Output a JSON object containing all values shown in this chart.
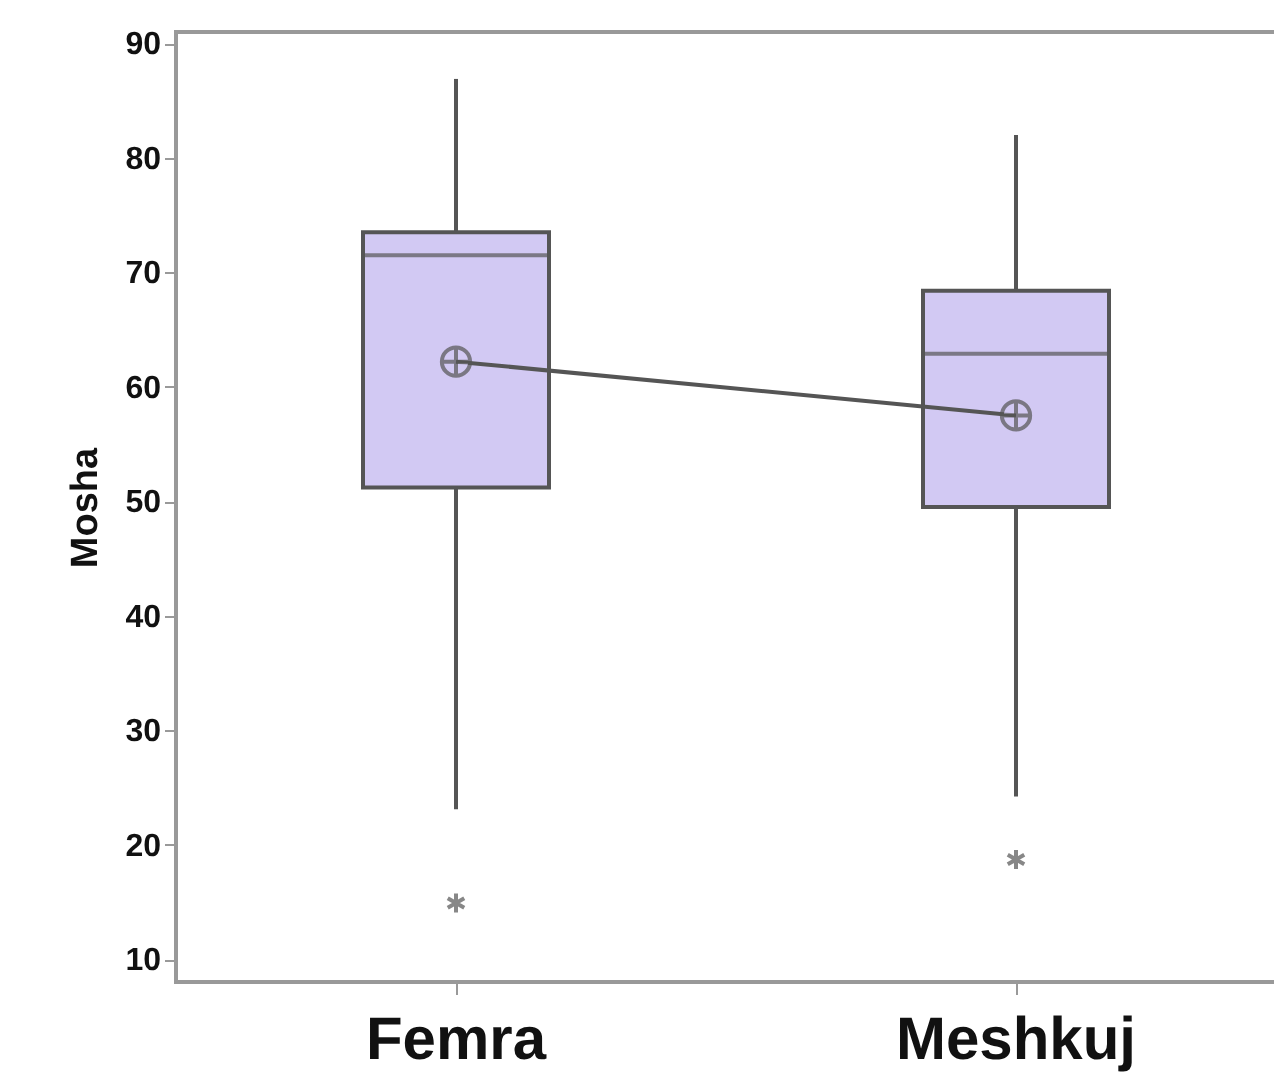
{
  "chart_data": {
    "type": "box",
    "ylabel": "Mosha",
    "categories": [
      "Femra",
      "Meshkuj"
    ],
    "color": "#d2c9f3",
    "boxes": [
      {
        "low": 23.1,
        "q1": 51.2,
        "median": 71.5,
        "q3": 73.5,
        "high": 86.9,
        "mean": 62.2,
        "outliers": [
          14.9
        ]
      },
      {
        "low": 24.2,
        "q1": 49.5,
        "median": 62.9,
        "q3": 68.4,
        "high": 82,
        "mean": 57.5,
        "outliers": [
          18.7
        ]
      }
    ],
    "series": [
      {
        "type": "line",
        "color": "#555555",
        "values": [
          62.2,
          57.5
        ]
      }
    ],
    "ylim": [
      8,
      91
    ],
    "yticks": [
      10,
      20,
      30,
      40,
      50,
      60,
      70,
      80,
      90
    ]
  }
}
